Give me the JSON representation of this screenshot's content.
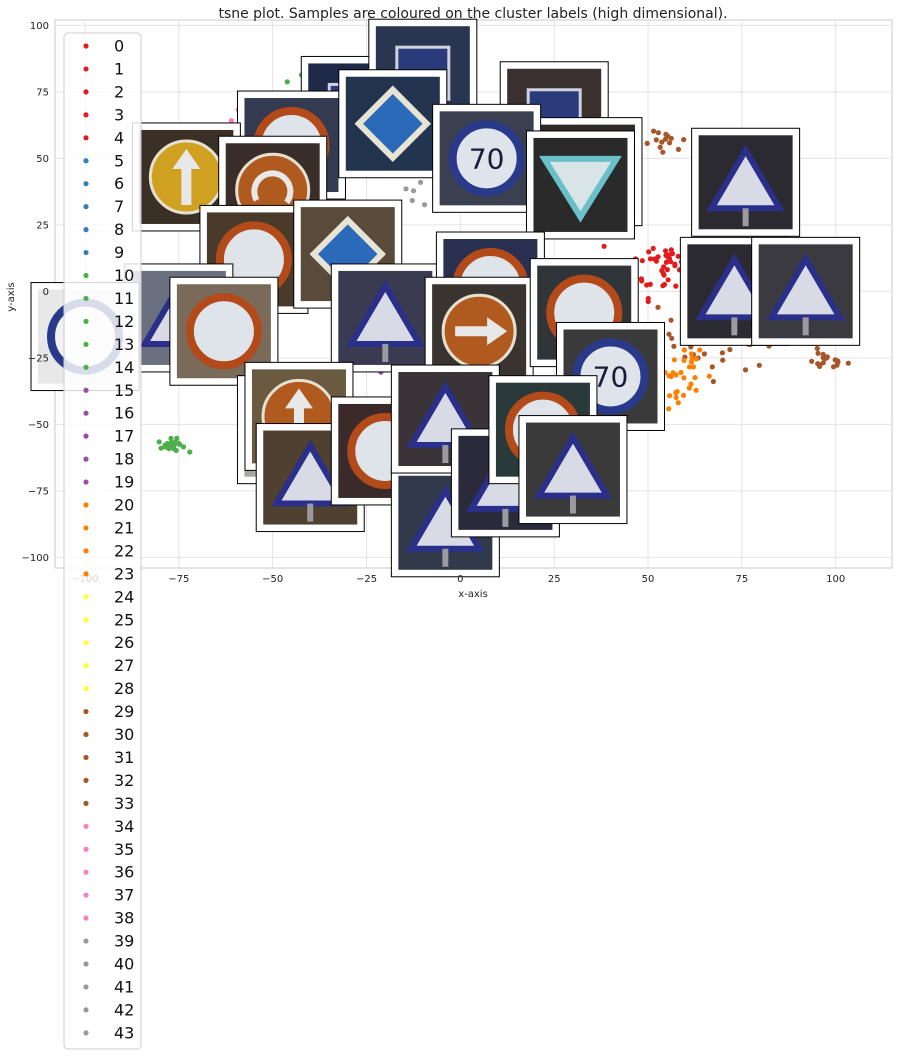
{
  "chart_data": {
    "type": "scatter",
    "title": "tsne plot. Samples are coloured on the cluster labels (high dimensional).",
    "xlabel": "x-axis",
    "ylabel": "y-axis",
    "xlim": [
      -108,
      115
    ],
    "ylim": [
      -104,
      102
    ],
    "xticks": [
      -100,
      -75,
      -50,
      -25,
      0,
      25,
      50,
      75,
      100
    ],
    "yticks": [
      -100,
      -75,
      -50,
      -25,
      0,
      25,
      50,
      75,
      100
    ],
    "grid": true,
    "legend_placement": "upper-left",
    "legend": [
      {
        "label": "0",
        "color": "#e41a1c"
      },
      {
        "label": "1",
        "color": "#e41a1c"
      },
      {
        "label": "2",
        "color": "#e41a1c"
      },
      {
        "label": "3",
        "color": "#e41a1c"
      },
      {
        "label": "4",
        "color": "#e41a1c"
      },
      {
        "label": "5",
        "color": "#377eb8"
      },
      {
        "label": "6",
        "color": "#377eb8"
      },
      {
        "label": "7",
        "color": "#377eb8"
      },
      {
        "label": "8",
        "color": "#377eb8"
      },
      {
        "label": "9",
        "color": "#377eb8"
      },
      {
        "label": "10",
        "color": "#4daf4a"
      },
      {
        "label": "11",
        "color": "#4daf4a"
      },
      {
        "label": "12",
        "color": "#4daf4a"
      },
      {
        "label": "13",
        "color": "#4daf4a"
      },
      {
        "label": "14",
        "color": "#4daf4a"
      },
      {
        "label": "15",
        "color": "#984ea3"
      },
      {
        "label": "16",
        "color": "#984ea3"
      },
      {
        "label": "17",
        "color": "#984ea3"
      },
      {
        "label": "18",
        "color": "#984ea3"
      },
      {
        "label": "19",
        "color": "#984ea3"
      },
      {
        "label": "20",
        "color": "#ff7f00"
      },
      {
        "label": "21",
        "color": "#ff7f00"
      },
      {
        "label": "22",
        "color": "#ff7f00"
      },
      {
        "label": "23",
        "color": "#ff7f00"
      },
      {
        "label": "24",
        "color": "#ffff33"
      },
      {
        "label": "25",
        "color": "#ffff33"
      },
      {
        "label": "26",
        "color": "#ffff33"
      },
      {
        "label": "27",
        "color": "#ffff33"
      },
      {
        "label": "28",
        "color": "#ffff33"
      },
      {
        "label": "29",
        "color": "#a65628"
      },
      {
        "label": "30",
        "color": "#a65628"
      },
      {
        "label": "31",
        "color": "#a65628"
      },
      {
        "label": "32",
        "color": "#a65628"
      },
      {
        "label": "33",
        "color": "#a65628"
      },
      {
        "label": "34",
        "color": "#f781bf"
      },
      {
        "label": "35",
        "color": "#f781bf"
      },
      {
        "label": "36",
        "color": "#f781bf"
      },
      {
        "label": "37",
        "color": "#f781bf"
      },
      {
        "label": "38",
        "color": "#f781bf"
      },
      {
        "label": "39",
        "color": "#999999"
      },
      {
        "label": "40",
        "color": "#999999"
      },
      {
        "label": "41",
        "color": "#999999"
      },
      {
        "label": "42",
        "color": "#999999"
      },
      {
        "label": "43",
        "color": "#999999"
      }
    ],
    "clusters": [
      {
        "color": "#a65628",
        "center": [
          70,
          -15
        ],
        "spread": [
          14,
          12
        ],
        "n": 70
      },
      {
        "color": "#a65628",
        "center": [
          97,
          -26
        ],
        "spread": [
          5,
          3
        ],
        "n": 18
      },
      {
        "color": "#a65628",
        "center": [
          55,
          55
        ],
        "spread": [
          5,
          4
        ],
        "n": 14
      },
      {
        "color": "#ff7f00",
        "center": [
          55,
          -30
        ],
        "spread": [
          10,
          14
        ],
        "n": 45
      },
      {
        "color": "#e41a1c",
        "center": [
          55,
          10
        ],
        "spread": [
          8,
          10
        ],
        "n": 45
      },
      {
        "color": "#4daf4a",
        "center": [
          -77,
          -58
        ],
        "spread": [
          3,
          2
        ],
        "n": 25
      },
      {
        "color": "#4daf4a",
        "center": [
          -40,
          80
        ],
        "spread": [
          5,
          3
        ],
        "n": 14
      },
      {
        "color": "#f781bf",
        "center": [
          -60,
          60
        ],
        "spread": [
          8,
          8
        ],
        "n": 14
      },
      {
        "color": "#377eb8",
        "center": [
          -55,
          20
        ],
        "spread": [
          6,
          6
        ],
        "n": 10
      },
      {
        "color": "#984ea3",
        "center": [
          -15,
          -10
        ],
        "spread": [
          10,
          10
        ],
        "n": 12
      },
      {
        "color": "#ffff33",
        "center": [
          40,
          -40
        ],
        "spread": [
          8,
          8
        ],
        "n": 8
      },
      {
        "color": "#999999",
        "center": [
          -10,
          40
        ],
        "spread": [
          10,
          10
        ],
        "n": 8
      }
    ],
    "thumbnails": [
      {
        "x": -28,
        "y": 68,
        "color": "#1f2a4a",
        "sign": "square"
      },
      {
        "x": -45,
        "y": 55,
        "color": "#343a50",
        "sign": "circle"
      },
      {
        "x": -10,
        "y": 82,
        "color": "#2a3550",
        "sign": "square"
      },
      {
        "x": -18,
        "y": 63,
        "color": "#23354e",
        "sign": "diamond"
      },
      {
        "x": 25,
        "y": 66,
        "color": "#3a3030",
        "sign": "square"
      },
      {
        "x": 34,
        "y": 45,
        "color": "#2e2a28",
        "sign": "square"
      },
      {
        "x": 7,
        "y": 50,
        "color": "#3a4050",
        "sign": "70"
      },
      {
        "x": 32,
        "y": 40,
        "color": "#2a2a2a",
        "sign": "yield"
      },
      {
        "x": -73,
        "y": 43,
        "color": "#3a3026",
        "sign": "arrow-up"
      },
      {
        "x": -50,
        "y": 38,
        "color": "#3a2e2a",
        "sign": "rotate"
      },
      {
        "x": -55,
        "y": 12,
        "color": "#4a3a2a",
        "sign": "circle"
      },
      {
        "x": -30,
        "y": 14,
        "color": "#5a4a3a",
        "sign": "diamond"
      },
      {
        "x": -75,
        "y": -10,
        "color": "#6a7080",
        "sign": "triangle"
      },
      {
        "x": -100,
        "y": -17,
        "color": "#e8e8e8",
        "sign": "ring"
      },
      {
        "x": -63,
        "y": -15,
        "color": "#7a6a5a",
        "sign": "circle"
      },
      {
        "x": -20,
        "y": -10,
        "color": "#3a3a50",
        "sign": "triangle"
      },
      {
        "x": 8,
        "y": 2,
        "color": "#2a3050",
        "sign": "circle"
      },
      {
        "x": 5,
        "y": -15,
        "color": "#3a3430",
        "sign": "arrow-right"
      },
      {
        "x": 33,
        "y": -8,
        "color": "#30353a",
        "sign": "circle"
      },
      {
        "x": 40,
        "y": -32,
        "color": "#3a3a3a",
        "sign": "70"
      },
      {
        "x": 76,
        "y": 41,
        "color": "#2a2a30",
        "sign": "triangle"
      },
      {
        "x": 73,
        "y": 0,
        "color": "#2a2a30",
        "sign": "triangle"
      },
      {
        "x": 92,
        "y": 0,
        "color": "#3a3a40",
        "sign": "triangle"
      },
      {
        "x": -45,
        "y": -52,
        "color": "#a0a8a0",
        "sign": "plain"
      },
      {
        "x": -43,
        "y": -47,
        "color": "#6a5a40",
        "sign": "arrow-up"
      },
      {
        "x": -40,
        "y": -70,
        "color": "#504030",
        "sign": "triangle"
      },
      {
        "x": -20,
        "y": -60,
        "color": "#3a2a2a",
        "sign": "circle"
      },
      {
        "x": -4,
        "y": -87,
        "color": "#303a4a",
        "sign": "triangle"
      },
      {
        "x": -4,
        "y": -48,
        "color": "#3a3438",
        "sign": "triangle"
      },
      {
        "x": 12,
        "y": -72,
        "color": "#2a2a3a",
        "sign": "triangle"
      },
      {
        "x": 22,
        "y": -52,
        "color": "#2a3a3a",
        "sign": "circle"
      },
      {
        "x": 30,
        "y": -67,
        "color": "#3a3a3a",
        "sign": "triangle"
      }
    ]
  }
}
